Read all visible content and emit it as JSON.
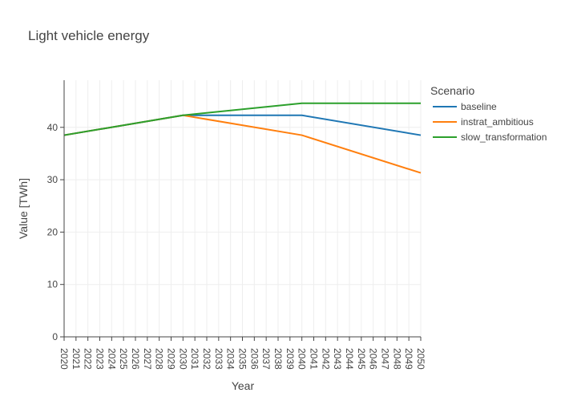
{
  "chart_data": {
    "type": "line",
    "title": "Light vehicle energy",
    "xlabel": "Year",
    "ylabel": "Value [TWh]",
    "x": [
      2020,
      2030,
      2040,
      2050
    ],
    "xticks": [
      "2020",
      "2021",
      "2022",
      "2023",
      "2024",
      "2025",
      "2026",
      "2027",
      "2028",
      "2029",
      "2030",
      "2031",
      "2032",
      "2033",
      "2034",
      "2035",
      "2036",
      "2037",
      "2038",
      "2039",
      "2040",
      "2041",
      "2042",
      "2043",
      "2044",
      "2045",
      "2046",
      "2047",
      "2048",
      "2049",
      "2050"
    ],
    "xlim": [
      2020,
      2050
    ],
    "yticks": [
      0,
      10,
      20,
      30,
      40
    ],
    "ylim": [
      0,
      49
    ],
    "grid": true,
    "legend": {
      "title": "Scenario",
      "placement": "top-right"
    },
    "series": [
      {
        "name": "baseline",
        "color": "#1f77b4",
        "values": [
          38.5,
          42.3,
          42.3,
          38.5
        ]
      },
      {
        "name": "instrat_ambitious",
        "color": "#ff7f0e",
        "values": [
          38.5,
          42.3,
          38.5,
          31.3
        ]
      },
      {
        "name": "slow_transformation",
        "color": "#2ca02c",
        "values": [
          38.5,
          42.3,
          44.6,
          44.6
        ]
      }
    ]
  }
}
